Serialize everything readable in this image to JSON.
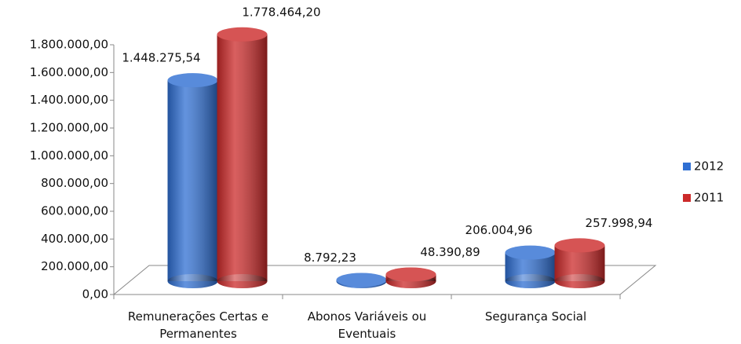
{
  "chart_data": {
    "type": "bar",
    "categories": [
      "Remunerações Certas e Permanentes",
      "Abonos Variáveis ou Eventuais",
      "Segurança Social"
    ],
    "series": [
      {
        "name": "2012",
        "color": "#2f6fd3",
        "values": [
          1448275.54,
          8792.23,
          206004.96
        ],
        "value_labels": [
          "1.448.275,54",
          "8.792,23",
          "206.004,96"
        ]
      },
      {
        "name": "2011",
        "color": "#cc2a2a",
        "values": [
          1778464.2,
          48390.89,
          257998.94
        ],
        "value_labels": [
          "1.778.464,20",
          "48.390,89",
          "257.998,94"
        ]
      }
    ],
    "ylim": [
      0,
      1800000
    ],
    "yticks": [
      {
        "value": 0,
        "label": "0,00"
      },
      {
        "value": 200000,
        "label": "200.000,00"
      },
      {
        "value": 400000,
        "label": "400.000,00"
      },
      {
        "value": 600000,
        "label": "600.000,00"
      },
      {
        "value": 800000,
        "label": "800.000,00"
      },
      {
        "value": 1000000,
        "label": "1.000.000,00"
      },
      {
        "value": 1200000,
        "label": "1.200.000,00"
      },
      {
        "value": 1400000,
        "label": "1.400.000,00"
      },
      {
        "value": 1600000,
        "label": "1.600.000,00"
      },
      {
        "value": 1800000,
        "label": "1.800.000,00"
      }
    ],
    "legend": "right"
  }
}
